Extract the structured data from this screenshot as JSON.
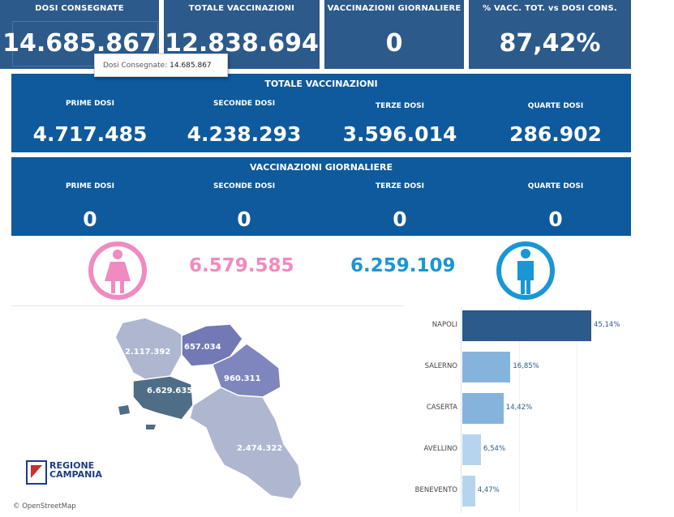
{
  "top_tiles": [
    {
      "title": "DOSI  CONSEGNATE",
      "value": "14.685.867"
    },
    {
      "title": "TOTALE VACCINAZIONI",
      "value": "12.838.694"
    },
    {
      "title": "VACCINAZIONI GIORNALIERE",
      "value": "0"
    },
    {
      "title": "% VACC. TOT. vs DOSI CONS.",
      "value": "87,42%"
    }
  ],
  "tooltip": {
    "label": "Dosi Consegnate:",
    "value": "14.685.867"
  },
  "totale": {
    "title": "TOTALE VACCINAZIONI",
    "cols": [
      {
        "label": "PRIME DOSI",
        "value": "4.717.485"
      },
      {
        "label": "SECONDE DOSI",
        "value": "4.238.293"
      },
      {
        "label": "TERZE DOSI",
        "value": "3.596.014"
      },
      {
        "label": "QUARTE DOSI",
        "value": "286.902"
      }
    ]
  },
  "giornaliere": {
    "title": "VACCINAZIONI GIORNALIERE",
    "cols": [
      {
        "label": "PRIME DOSI",
        "value": "0"
      },
      {
        "label": "SECONDE DOSI",
        "value": "0"
      },
      {
        "label": "TERZE DOSI",
        "value": "0"
      },
      {
        "label": "QUARTE DOSI",
        "value": "0"
      }
    ]
  },
  "gender": {
    "female_value": "6.579.585",
    "female_color": "#f08ac0",
    "male_value": "6.259.109",
    "male_color": "#1a96d4"
  },
  "map": {
    "labels": {
      "caserta": "2.117.392",
      "benevento": "657.034",
      "avellino": "960.311",
      "napoli": "6.629.635",
      "salerno": "2.474.322"
    },
    "attribution": "© OpenStreetMap",
    "logo_line1": "REGIONE",
    "logo_line2": "CAMPANIA"
  },
  "chart_data": {
    "type": "bar",
    "orientation": "horizontal",
    "categories": [
      "NAPOLI",
      "SALERNO",
      "CASERTA",
      "AVELLINO",
      "BENEVENTO"
    ],
    "values": [
      45.14,
      16.85,
      14.42,
      6.54,
      4.47
    ],
    "value_labels": [
      "45,14%",
      "16,85%",
      "14,42%",
      "6,54%",
      "4,47%"
    ],
    "colors": [
      "#2c5a8a",
      "#86b3dc",
      "#86b3dc",
      "#b6d4ee",
      "#b6d4ee"
    ]
  }
}
